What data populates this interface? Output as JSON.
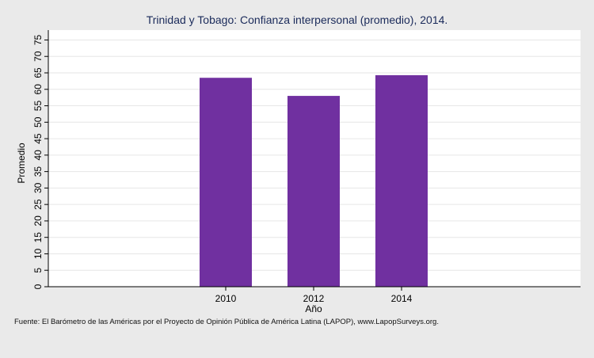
{
  "chart_data": {
    "type": "bar",
    "title": "Trinidad y Tobago: Confianza interpersonal (promedio), 2014.",
    "xlabel": "Año",
    "ylabel": "Promedio",
    "categories": [
      "2010",
      "2012",
      "2014"
    ],
    "values": [
      63.5,
      58.0,
      64.3
    ],
    "ylim": [
      0,
      78
    ],
    "yticks": [
      0,
      5,
      10,
      15,
      20,
      25,
      30,
      35,
      40,
      45,
      50,
      55,
      60,
      65,
      70,
      75
    ],
    "grid": true,
    "legend": "none",
    "bar_color": "#7030a0",
    "plot_background": "#ffffff",
    "grid_color": "#e6e6e6",
    "source": "Fuente: El Barómetro de las Américas por el Proyecto de Opinión Pública de América Latina (LAPOP), www.LapopSurveys.org."
  }
}
